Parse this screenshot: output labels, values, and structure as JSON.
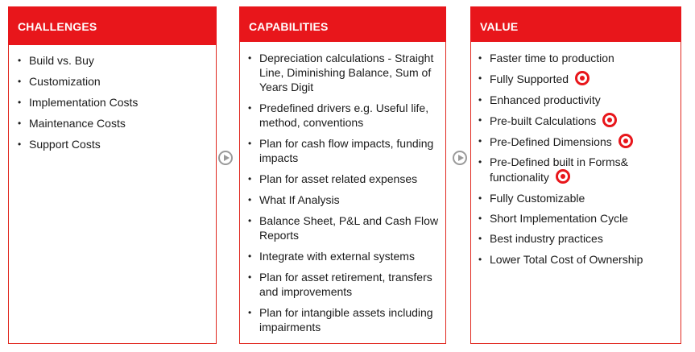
{
  "columns": [
    {
      "title": "CHALLENGES",
      "items": [
        {
          "text": "Build vs. Buy"
        },
        {
          "text": "Customization"
        },
        {
          "text": "Implementation Costs"
        },
        {
          "text": "Maintenance Costs"
        },
        {
          "text": "Support Costs"
        }
      ]
    },
    {
      "title": "CAPABILITIES",
      "items": [
        {
          "text": "Depreciation calculations - Straight Line, Diminishing Balance,  Sum of Years Digit"
        },
        {
          "text": "Predefined drivers e.g. Useful life, method, conventions"
        },
        {
          "text": "Plan for cash flow impacts, funding impacts"
        },
        {
          "text": "Plan for asset related expenses"
        },
        {
          "text": "What If Analysis"
        },
        {
          "text": "Balance Sheet, P&L and Cash Flow Reports"
        },
        {
          "text": "Integrate with external systems"
        },
        {
          "text": "Plan for asset retirement, transfers and improvements"
        },
        {
          "text": "Plan for intangible assets including impairments"
        }
      ]
    },
    {
      "title": "VALUE",
      "items": [
        {
          "text": "Faster time to  production",
          "marker": false
        },
        {
          "text": "Fully Supported",
          "marker": true
        },
        {
          "text": "Enhanced productivity",
          "marker": false
        },
        {
          "text": "Pre-built Calculations",
          "marker": true
        },
        {
          "text": "Pre-Defined Dimensions",
          "marker": true
        },
        {
          "text": "Pre-Defined  built in Forms& functionality",
          "marker": true
        },
        {
          "text": "Fully Customizable",
          "marker": false
        },
        {
          "text": "Short Implementation Cycle",
          "marker": false
        },
        {
          "text": "Best industry practices",
          "marker": false
        },
        {
          "text": "Lower Total Cost of Ownership",
          "marker": false
        }
      ]
    }
  ],
  "bullet_glyph": "•",
  "marker_icon": "target-icon",
  "arrow_icon": "play-circle-icon",
  "colors": {
    "accent": "#e8161b",
    "arrow": "#9a9a9a"
  }
}
